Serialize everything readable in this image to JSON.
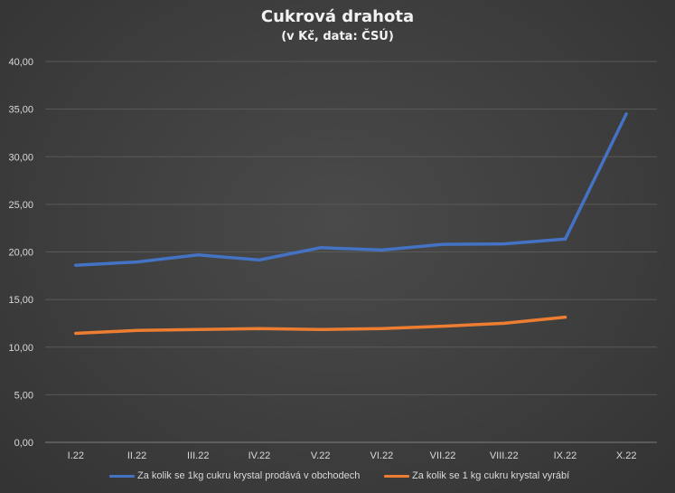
{
  "chart_data": {
    "type": "line",
    "title": "Cukrová drahota",
    "subtitle": "(v Kč, data: ČSÚ)",
    "categories": [
      "I.22",
      "II.22",
      "III.22",
      "IV.22",
      "V.22",
      "VI.22",
      "VII.22",
      "VIII.22",
      "IX.22",
      "X.22"
    ],
    "ylim": [
      0,
      40
    ],
    "yticks": [
      "0,00",
      "5,00",
      "10,00",
      "15,00",
      "20,00",
      "25,00",
      "30,00",
      "35,00",
      "40,00"
    ],
    "grid": true,
    "legend_position": "bottom",
    "series": [
      {
        "name": "Za kolik se 1kg cukru krystal prodává v obchodech",
        "color": "#4472c4",
        "values": [
          18.6,
          18.95,
          19.7,
          19.15,
          20.45,
          20.2,
          20.8,
          20.85,
          21.35,
          34.5
        ]
      },
      {
        "name": "Za kolik se 1 kg cukru krystal vyrábí",
        "color": "#ed7d31",
        "values": [
          11.45,
          11.75,
          11.85,
          11.95,
          11.85,
          11.95,
          12.2,
          12.5,
          13.15,
          null
        ]
      }
    ]
  }
}
